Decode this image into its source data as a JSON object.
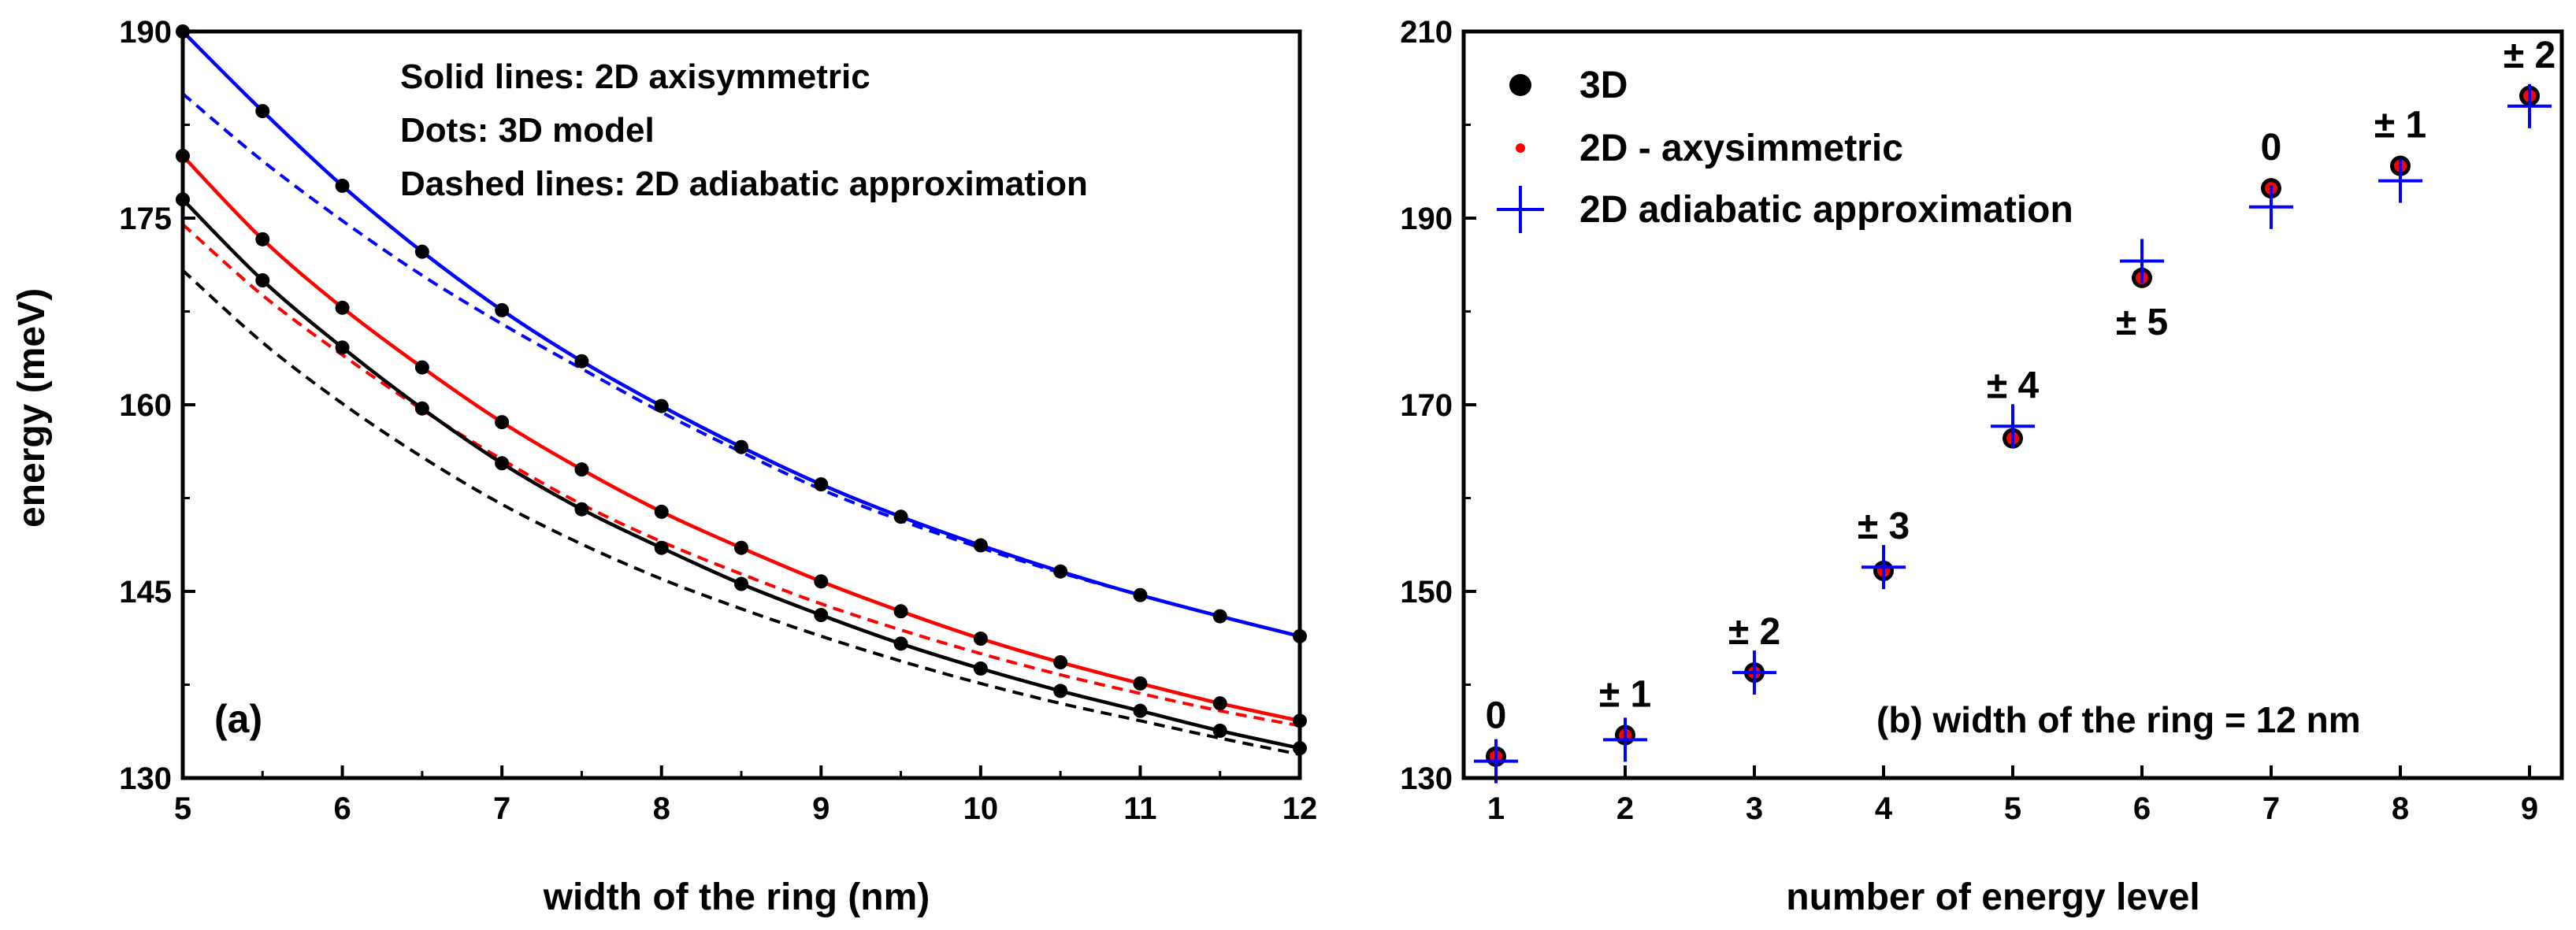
{
  "chart_data": [
    {
      "type": "line",
      "panel_label": "(a)",
      "xlabel": "width of the ring (nm)",
      "ylabel": "energy (meV)",
      "xlim": [
        5,
        12
      ],
      "ylim": [
        130,
        190
      ],
      "xticks": [
        5,
        6,
        7,
        8,
        9,
        10,
        11,
        12
      ],
      "yticks": [
        130,
        145,
        160,
        175,
        190
      ],
      "annotations": [
        "Solid lines: 2D axisymmetric",
        "Dots: 3D model",
        "Dashed lines: 2D adiabatic approximation"
      ],
      "x": [
        5,
        5.5,
        6,
        6.5,
        7,
        7.5,
        8,
        8.5,
        9,
        9.5,
        10,
        10.5,
        11,
        11.5,
        12
      ],
      "series": [
        {
          "name": "blue",
          "color": "#0000ff",
          "solid_2d_axisymmetric": [
            190.0,
            183.6,
            177.6,
            172.3,
            167.6,
            163.5,
            159.9,
            156.6,
            153.6,
            151.0,
            148.7,
            146.6,
            144.7,
            143.0,
            141.4
          ],
          "dashed_2d_adiabatic": [
            185.0,
            179.6,
            174.8,
            170.4,
            166.5,
            162.9,
            159.4,
            156.2,
            153.2,
            150.7,
            148.5,
            146.5,
            144.7,
            143.0,
            141.4
          ],
          "dots_3d": [
            190.0,
            183.6,
            177.6,
            172.3,
            167.6,
            163.5,
            159.9,
            156.6,
            153.6,
            151.0,
            148.7,
            146.6,
            144.7,
            143.0,
            141.4
          ]
        },
        {
          "name": "red",
          "color": "#ff0000",
          "solid_2d_axisymmetric": [
            180.0,
            173.3,
            167.8,
            163.0,
            158.6,
            154.8,
            151.4,
            148.5,
            145.8,
            143.4,
            141.2,
            139.3,
            137.6,
            136.0,
            134.6
          ],
          "dashed_2d_adiabatic": [
            174.5,
            168.8,
            164.0,
            159.6,
            155.6,
            152.0,
            149.0,
            146.4,
            144.0,
            141.9,
            140.0,
            138.3,
            136.8,
            135.4,
            134.2
          ],
          "dots_3d": [
            180.0,
            173.3,
            167.8,
            163.0,
            158.6,
            154.8,
            151.4,
            148.5,
            145.8,
            143.4,
            141.2,
            139.3,
            137.6,
            136.0,
            134.6
          ]
        },
        {
          "name": "black",
          "color": "#000000",
          "solid_2d_axisymmetric": [
            176.5,
            170.0,
            164.6,
            159.7,
            155.3,
            151.6,
            148.5,
            145.6,
            143.1,
            140.8,
            138.8,
            137.0,
            135.4,
            133.8,
            132.4
          ],
          "dashed_2d_adiabatic": [
            170.8,
            165.0,
            160.1,
            155.8,
            152.0,
            148.8,
            146.0,
            143.6,
            141.4,
            139.4,
            137.6,
            136.0,
            134.6,
            133.2,
            131.9
          ],
          "dots_3d": [
            176.5,
            170.0,
            164.6,
            159.7,
            155.3,
            151.6,
            148.5,
            145.6,
            143.1,
            140.8,
            138.8,
            137.0,
            135.4,
            133.8,
            132.4
          ]
        }
      ]
    },
    {
      "type": "scatter",
      "panel_label": "(b) width of the ring = 12 nm",
      "xlabel": "number of energy level",
      "ylabel": "",
      "xlim": [
        0.75,
        9.25
      ],
      "ylim": [
        130,
        210
      ],
      "xticks": [
        1,
        2,
        3,
        4,
        5,
        6,
        7,
        8,
        9
      ],
      "yticks": [
        130,
        150,
        170,
        190,
        210
      ],
      "legend": [
        {
          "label": "3D",
          "marker": "dot",
          "color": "#000000"
        },
        {
          "label": "2D - axysimmetric",
          "marker": "small-dot",
          "color": "#ff0000"
        },
        {
          "label": "2D adiabatic approximation",
          "marker": "plus",
          "color": "#0000ff"
        }
      ],
      "x": [
        1,
        2,
        3,
        4,
        5,
        6,
        7,
        8,
        9
      ],
      "series": [
        {
          "name": "3D",
          "color": "#000000",
          "values": [
            132.3,
            134.6,
            141.3,
            152.2,
            166.4,
            183.6,
            193.2,
            195.6,
            203.1
          ]
        },
        {
          "name": "2D - axysimmetric",
          "color": "#ff0000",
          "values": [
            132.3,
            134.6,
            141.3,
            152.2,
            166.4,
            183.6,
            193.2,
            195.6,
            203.1
          ]
        },
        {
          "name": "2D adiabatic approximation",
          "color": "#0000ff",
          "values": [
            131.8,
            134.1,
            141.3,
            152.6,
            167.7,
            185.4,
            191.2,
            194.0,
            202.0
          ]
        }
      ],
      "point_labels": [
        "0",
        "± 1",
        "± 2",
        "± 3",
        "± 4",
        "± 5",
        "0",
        "± 1",
        "± 2"
      ]
    }
  ]
}
